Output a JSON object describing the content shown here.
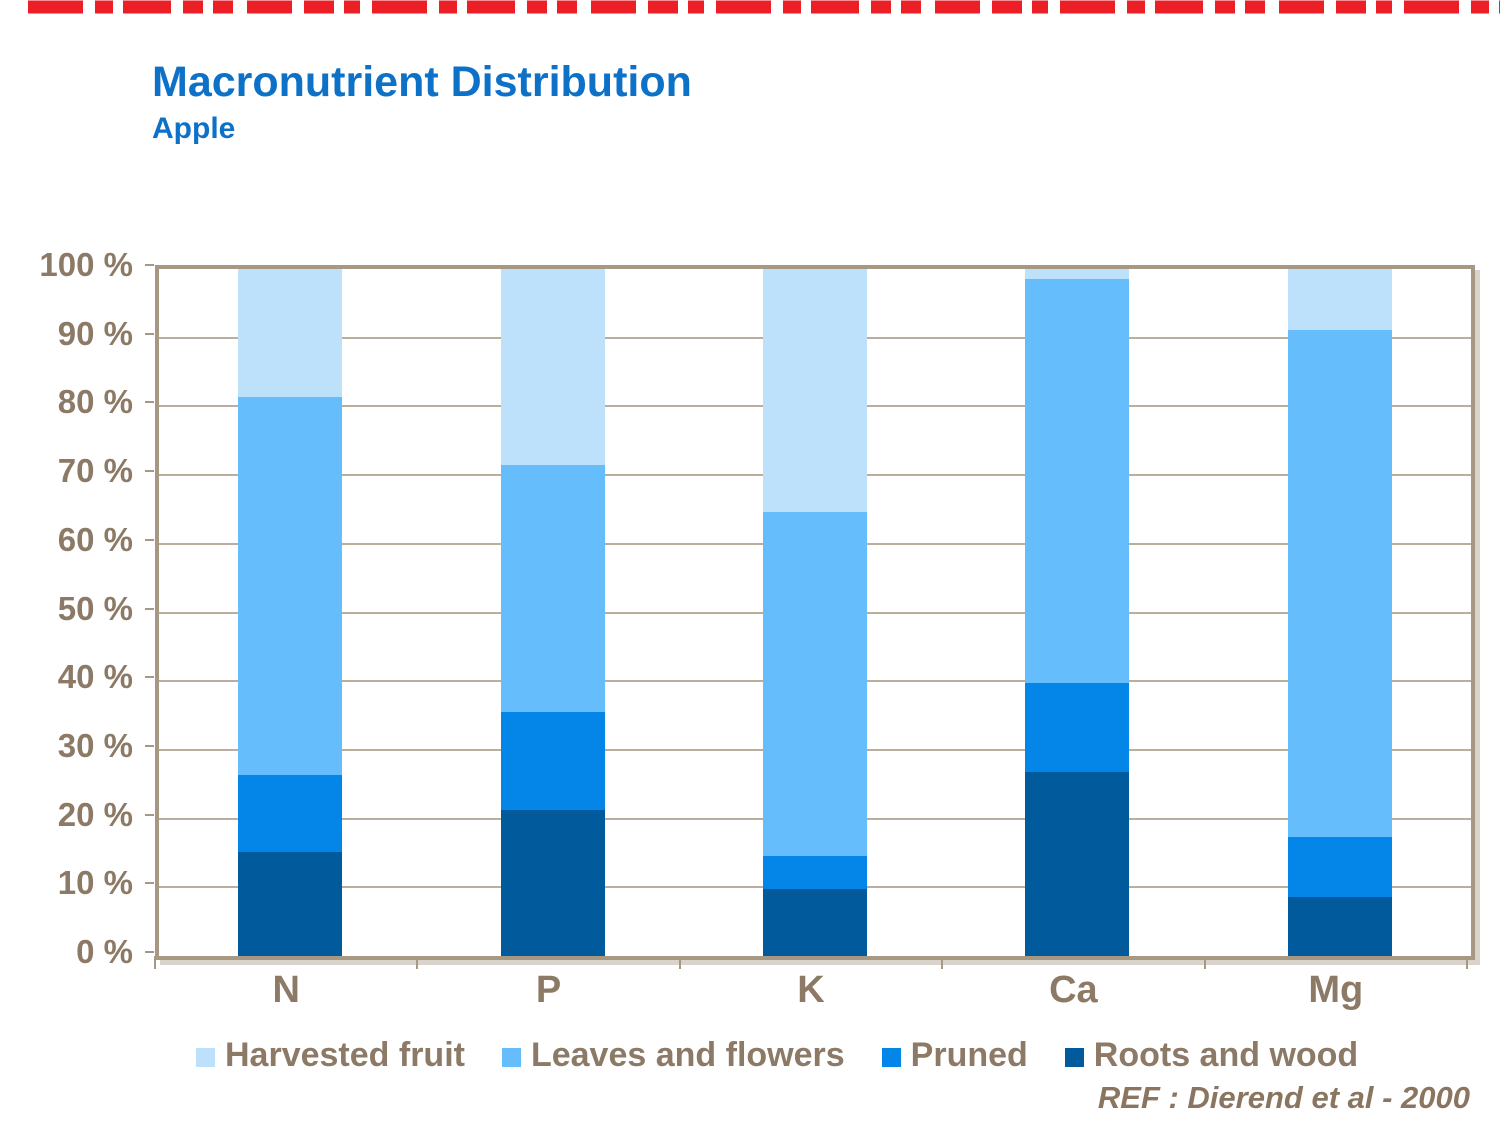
{
  "accent": {
    "top_line_color": "#ec1f27"
  },
  "header": {
    "title": "Macronutrient Distribution",
    "subtitle": "Apple",
    "title_color": "#0d71c7"
  },
  "chart_data": {
    "type": "bar",
    "stacked": true,
    "title": "Macronutrient Distribution",
    "subtitle": "Apple",
    "categories": [
      "N",
      "P",
      "K",
      "Ca",
      "Mg"
    ],
    "series": [
      {
        "name": "Roots and wood",
        "color": "#005a9b",
        "values": [
          15.2,
          21.3,
          9.7,
          26.8,
          8.6
        ]
      },
      {
        "name": "Pruned",
        "color": "#0485e8",
        "values": [
          11.2,
          14.2,
          4.9,
          13.0,
          8.7
        ]
      },
      {
        "name": "Leaves and flowers",
        "color": "#66bdfc",
        "values": [
          55.0,
          36.0,
          50.1,
          58.7,
          73.8
        ]
      },
      {
        "name": "Harvested fruit",
        "color": "#bde0fb",
        "values": [
          18.6,
          28.5,
          35.3,
          1.5,
          8.9
        ]
      }
    ],
    "legend_order": [
      "Harvested fruit",
      "Leaves and flowers",
      "Pruned",
      "Roots and wood"
    ],
    "legend_position": "bottom",
    "y_ticks": [
      "100 %",
      "90 %",
      "80 %",
      "70 %",
      "60 %",
      "50 %",
      "40 %",
      "30 %",
      "20 %",
      "10 %",
      "0 %"
    ],
    "ylim": [
      0,
      100
    ],
    "xlabel": "",
    "ylabel": "",
    "grid": true
  },
  "footer": {
    "ref": "REF :  Dierend et al - 2000"
  },
  "palette": {
    "text_brown": "#8c7a66",
    "grid_color": "#bcae9d",
    "axis_color": "#a79883"
  }
}
